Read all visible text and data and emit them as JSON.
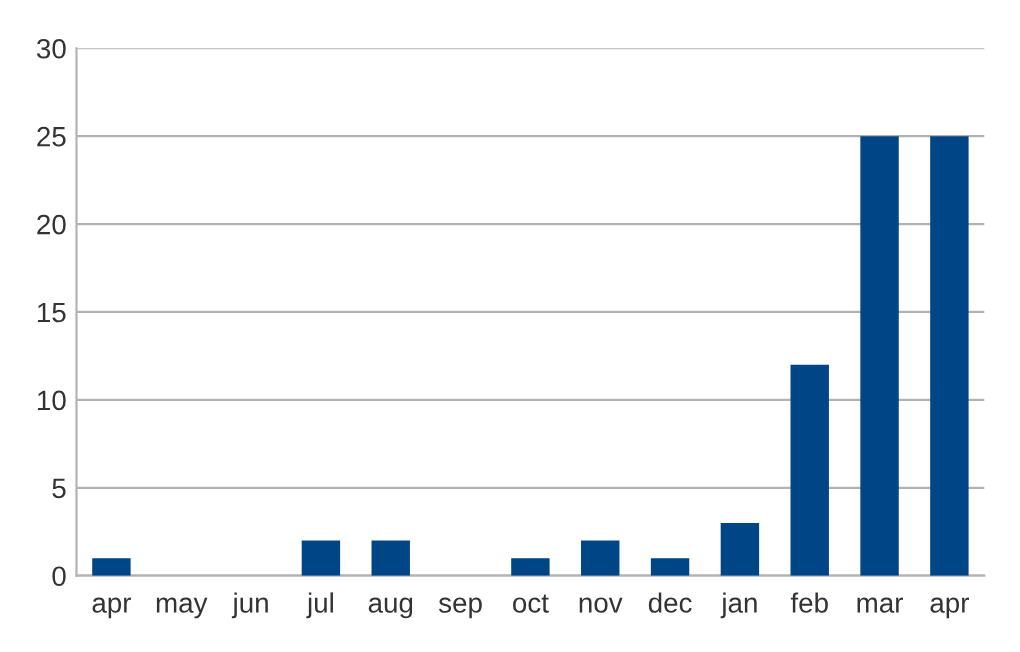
{
  "chart_data": {
    "type": "bar",
    "categories": [
      "apr",
      "may",
      "jun",
      "jul",
      "aug",
      "sep",
      "oct",
      "nov",
      "dec",
      "jan",
      "feb",
      "mar",
      "apr"
    ],
    "values": [
      1,
      0,
      0,
      2,
      2,
      0,
      1,
      2,
      1,
      3,
      12,
      25,
      25
    ],
    "color": "#004586",
    "ylim": [
      0,
      30
    ],
    "yticks": [
      0,
      5,
      10,
      15,
      20,
      25,
      30
    ],
    "grid": "y",
    "legend": false
  }
}
